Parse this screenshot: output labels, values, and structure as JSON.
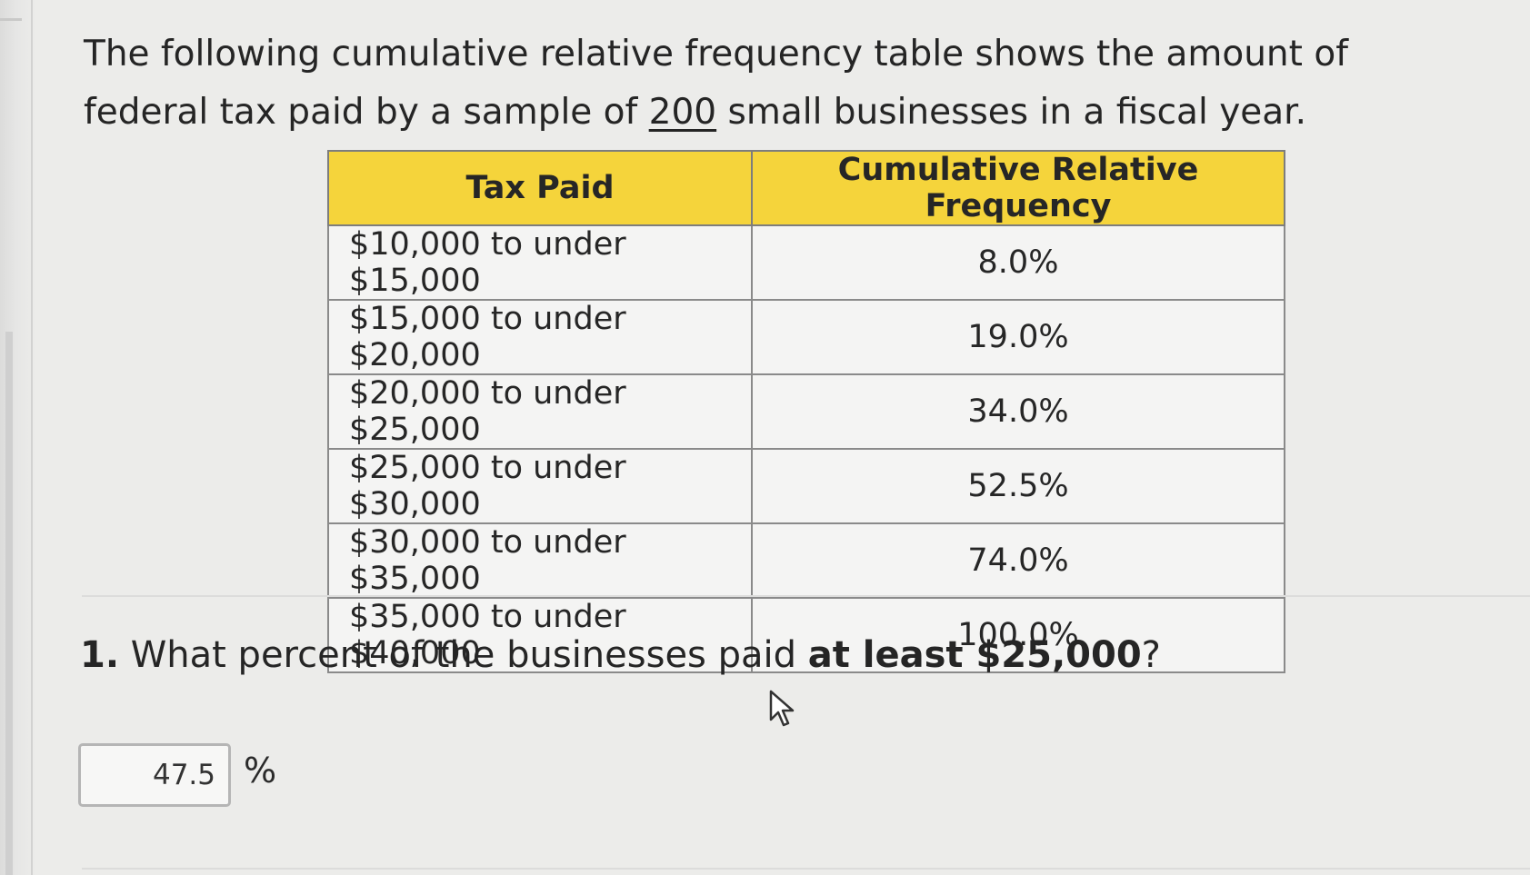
{
  "prompt": {
    "text_before": "The following cumulative relative frequency table shows the amount of federal tax paid by a sample of ",
    "sample_size": "200",
    "text_after": " small businesses in a fiscal year."
  },
  "table": {
    "headers": [
      "Tax Paid",
      "Cumulative Relative Frequency"
    ],
    "rows": [
      {
        "range": "$10,000 to under $15,000",
        "value": "8.0%"
      },
      {
        "range": "$15,000 to under $20,000",
        "value": "19.0%"
      },
      {
        "range": "$20,000 to under $25,000",
        "value": "34.0%"
      },
      {
        "range": "$25,000 to under $30,000",
        "value": "52.5%"
      },
      {
        "range": "$30,000 to under $35,000",
        "value": "74.0%"
      },
      {
        "range": "$35,000 to under $40,000",
        "value": "100.0%"
      }
    ]
  },
  "question": {
    "number": "1.",
    "text_before": " What percent of the businesses paid ",
    "emphasis": "at least $25,000",
    "text_after": "?"
  },
  "answer": {
    "value": "47.5",
    "unit": "%"
  },
  "icons": {
    "cursor": "mouse-pointer-icon"
  }
}
